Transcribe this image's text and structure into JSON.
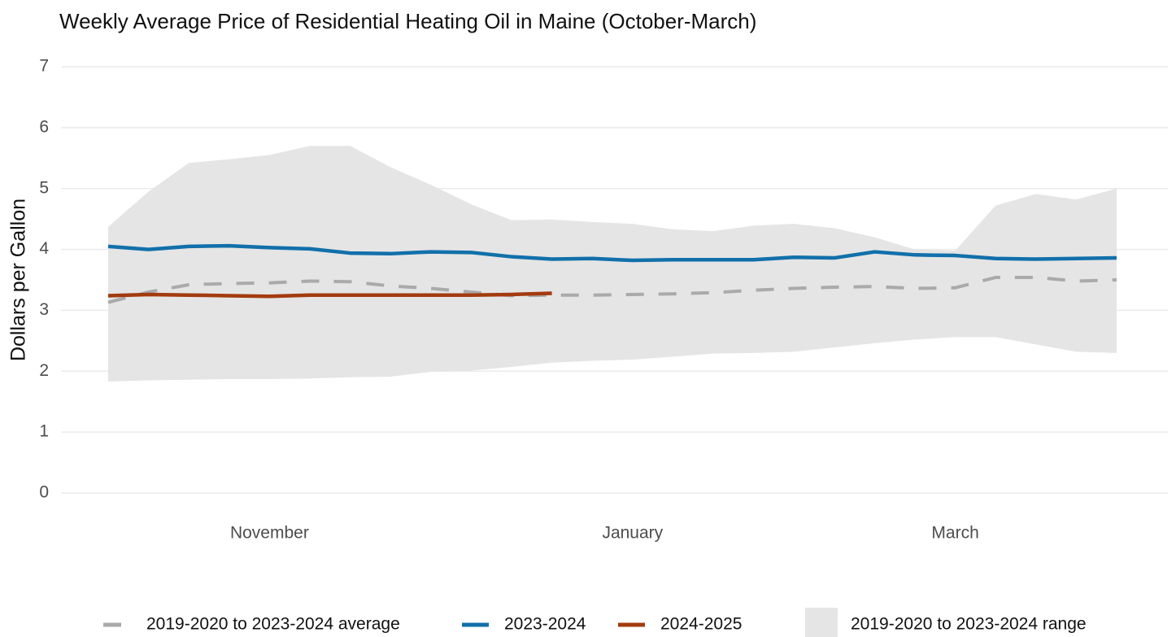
{
  "chart_data": {
    "type": "line",
    "title": "Weekly Average Price of Residential Heating Oil in Maine (October-March)",
    "y_label": "Dollars per Gallon",
    "categories": [
      null,
      null,
      null,
      null,
      "November",
      null,
      null,
      null,
      null,
      null,
      null,
      null,
      null,
      "January",
      null,
      null,
      null,
      null,
      null,
      null,
      null,
      "March",
      null,
      null,
      null,
      null
    ],
    "ylim": [
      0,
      7
    ],
    "yticks": [
      0,
      1,
      2,
      3,
      4,
      5,
      6,
      7
    ],
    "grid": true,
    "legend": "bottom",
    "series": [
      {
        "name": "2019-2020 to 2023-2024 average",
        "color": "#aaaaaa",
        "dashed": true,
        "values": [
          3.13,
          3.3,
          3.42,
          3.44,
          3.45,
          3.48,
          3.47,
          3.4,
          3.36,
          3.3,
          3.24,
          3.25,
          3.25,
          3.26,
          3.27,
          3.29,
          3.33,
          3.36,
          3.38,
          3.39,
          3.36,
          3.37,
          3.54,
          3.54,
          3.48,
          3.5
        ]
      },
      {
        "name": "2023-2024",
        "color": "#1170aa",
        "values": [
          4.05,
          4.0,
          4.05,
          4.06,
          4.03,
          4.01,
          3.94,
          3.93,
          3.96,
          3.95,
          3.88,
          3.84,
          3.85,
          3.82,
          3.83,
          3.83,
          3.83,
          3.87,
          3.86,
          3.96,
          3.91,
          3.9,
          3.85,
          3.84,
          3.85,
          3.86
        ]
      },
      {
        "name": "2024-2025",
        "color": "#a33b0f",
        "values": [
          3.24,
          3.26,
          3.25,
          3.24,
          3.23,
          3.25,
          3.25,
          3.25,
          3.25,
          3.25,
          3.26,
          3.28,
          null,
          null,
          null,
          null,
          null,
          null,
          null,
          null,
          null,
          null,
          null,
          null,
          null,
          null
        ]
      }
    ],
    "range": {
      "name": "2019-2020 to 2023-2024 range",
      "color": "#e5e5e5",
      "upper": [
        4.37,
        4.95,
        5.42,
        5.48,
        5.55,
        5.7,
        5.7,
        5.35,
        5.06,
        4.74,
        4.48,
        4.49,
        4.45,
        4.42,
        4.33,
        4.3,
        4.39,
        4.42,
        4.35,
        4.2,
        4.0,
        3.98,
        4.72,
        4.91,
        4.82,
        5.0
      ],
      "lower": [
        1.83,
        1.85,
        1.86,
        1.87,
        1.87,
        1.88,
        1.9,
        1.91,
        1.99,
        2.01,
        2.07,
        2.14,
        2.17,
        2.19,
        2.24,
        2.29,
        2.3,
        2.32,
        2.39,
        2.46,
        2.52,
        2.56,
        2.56,
        2.44,
        2.32,
        2.3
      ]
    }
  }
}
